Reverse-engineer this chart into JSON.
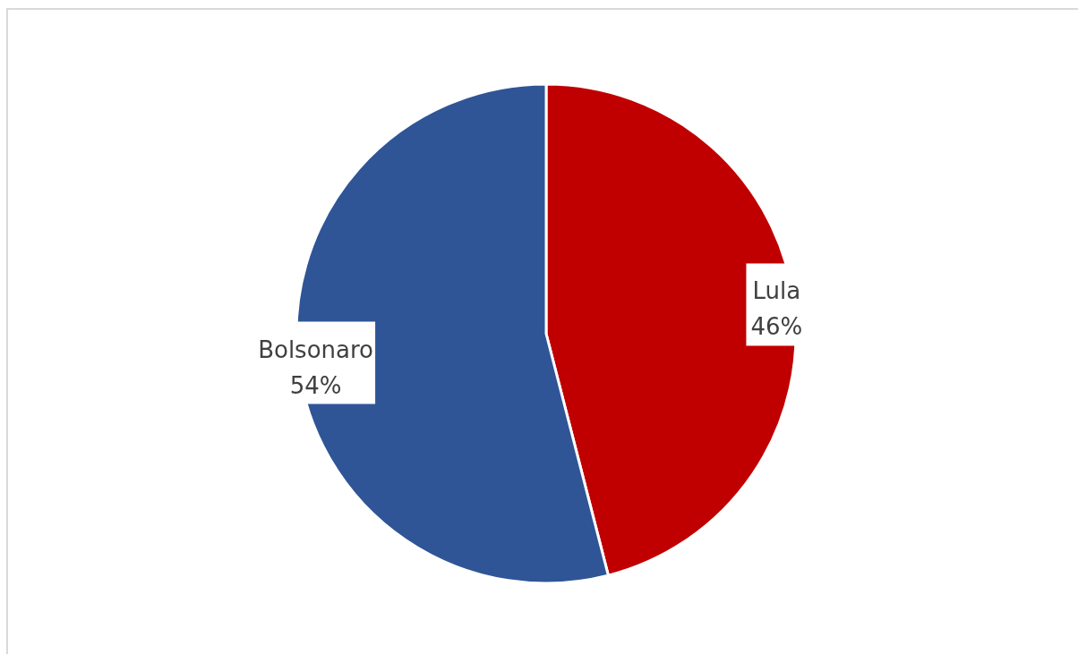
{
  "chart_data": {
    "type": "pie",
    "categories": [
      "Lula",
      "Bolsonaro"
    ],
    "values": [
      46,
      54
    ],
    "value_labels": [
      "46%",
      "54%"
    ],
    "colors": [
      "#c00000",
      "#2f5597"
    ]
  }
}
